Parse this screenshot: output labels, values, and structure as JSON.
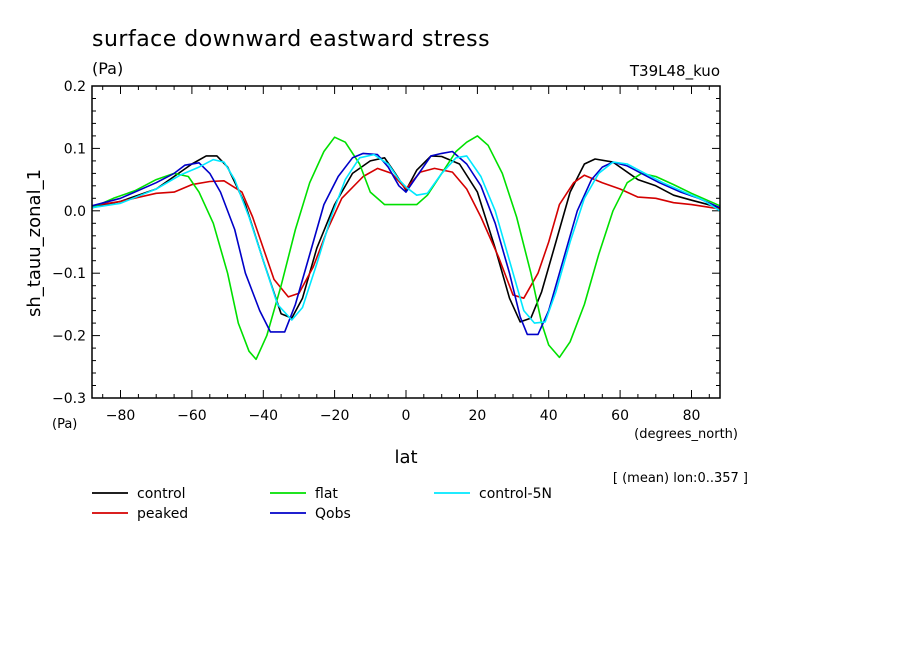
{
  "chart_data": {
    "type": "line",
    "title": "surface downward eastward stress",
    "title_units": "(Pa)",
    "model_label": "T39L48_kuo",
    "ylabel": "sh_tauu_zonal_1",
    "y_units": "(Pa)",
    "xlabel": "lat",
    "x_units": "(degrees_north)",
    "note": "[ (mean) lon:0..357 ]",
    "xlim": [
      -88,
      88
    ],
    "ylim": [
      -0.3,
      0.2
    ],
    "x_ticks": [
      -80,
      -60,
      -40,
      -20,
      0,
      20,
      40,
      60,
      80
    ],
    "x_tick_labels": [
      "−80",
      "−60",
      "−40",
      "−20",
      "0",
      "20",
      "40",
      "60",
      "80"
    ],
    "y_ticks": [
      -0.3,
      -0.2,
      -0.1,
      0.0,
      0.1,
      0.2
    ],
    "y_tick_labels": [
      "−0.3",
      "−0.2",
      "−0.1",
      "0.0",
      "0.1",
      "0.2"
    ],
    "grid": false,
    "legend_position": "bottom",
    "series": [
      {
        "name": "control",
        "color": "#000000",
        "points": [
          [
            -88,
            0.005
          ],
          [
            -80,
            0.015
          ],
          [
            -70,
            0.035
          ],
          [
            -60,
            0.075
          ],
          [
            -56,
            0.088
          ],
          [
            -53,
            0.088
          ],
          [
            -50,
            0.07
          ],
          [
            -45,
            0.01
          ],
          [
            -40,
            -0.08
          ],
          [
            -35,
            -0.165
          ],
          [
            -32,
            -0.172
          ],
          [
            -29,
            -0.14
          ],
          [
            -25,
            -0.06
          ],
          [
            -20,
            0.01
          ],
          [
            -15,
            0.06
          ],
          [
            -10,
            0.08
          ],
          [
            -6,
            0.085
          ],
          [
            -3,
            0.06
          ],
          [
            0,
            0.033
          ],
          [
            3,
            0.065
          ],
          [
            7,
            0.088
          ],
          [
            10,
            0.087
          ],
          [
            15,
            0.075
          ],
          [
            20,
            0.03
          ],
          [
            25,
            -0.06
          ],
          [
            29,
            -0.14
          ],
          [
            32,
            -0.178
          ],
          [
            35,
            -0.172
          ],
          [
            38,
            -0.13
          ],
          [
            42,
            -0.05
          ],
          [
            46,
            0.03
          ],
          [
            50,
            0.075
          ],
          [
            53,
            0.083
          ],
          [
            58,
            0.078
          ],
          [
            65,
            0.05
          ],
          [
            70,
            0.04
          ],
          [
            75,
            0.025
          ],
          [
            80,
            0.017
          ],
          [
            88,
            0.005
          ]
        ]
      },
      {
        "name": "peaked",
        "color": "#d40000",
        "points": [
          [
            -88,
            0.008
          ],
          [
            -80,
            0.015
          ],
          [
            -70,
            0.028
          ],
          [
            -65,
            0.03
          ],
          [
            -60,
            0.042
          ],
          [
            -55,
            0.047
          ],
          [
            -51,
            0.048
          ],
          [
            -46,
            0.03
          ],
          [
            -43,
            -0.01
          ],
          [
            -40,
            -0.06
          ],
          [
            -37,
            -0.11
          ],
          [
            -33,
            -0.138
          ],
          [
            -30,
            -0.132
          ],
          [
            -26,
            -0.09
          ],
          [
            -22,
            -0.03
          ],
          [
            -18,
            0.02
          ],
          [
            -12,
            0.055
          ],
          [
            -8,
            0.068
          ],
          [
            -4,
            0.06
          ],
          [
            0,
            0.035
          ],
          [
            4,
            0.062
          ],
          [
            8,
            0.068
          ],
          [
            13,
            0.062
          ],
          [
            17,
            0.035
          ],
          [
            21,
            -0.01
          ],
          [
            26,
            -0.075
          ],
          [
            30,
            -0.135
          ],
          [
            33,
            -0.14
          ],
          [
            37,
            -0.1
          ],
          [
            40,
            -0.05
          ],
          [
            43,
            0.01
          ],
          [
            47,
            0.045
          ],
          [
            50,
            0.057
          ],
          [
            55,
            0.045
          ],
          [
            60,
            0.035
          ],
          [
            65,
            0.022
          ],
          [
            70,
            0.02
          ],
          [
            75,
            0.013
          ],
          [
            80,
            0.01
          ],
          [
            88,
            0.003
          ]
        ]
      },
      {
        "name": "flat",
        "color": "#00e000",
        "points": [
          [
            -88,
            0.005
          ],
          [
            -82,
            0.02
          ],
          [
            -76,
            0.032
          ],
          [
            -70,
            0.05
          ],
          [
            -65,
            0.06
          ],
          [
            -61,
            0.055
          ],
          [
            -58,
            0.03
          ],
          [
            -54,
            -0.02
          ],
          [
            -50,
            -0.1
          ],
          [
            -47,
            -0.18
          ],
          [
            -44,
            -0.225
          ],
          [
            -42,
            -0.238
          ],
          [
            -39,
            -0.2
          ],
          [
            -35,
            -0.12
          ],
          [
            -31,
            -0.03
          ],
          [
            -27,
            0.045
          ],
          [
            -23,
            0.095
          ],
          [
            -20,
            0.118
          ],
          [
            -17,
            0.11
          ],
          [
            -13,
            0.075
          ],
          [
            -10,
            0.03
          ],
          [
            -6,
            0.01
          ],
          [
            0,
            0.01
          ],
          [
            3,
            0.01
          ],
          [
            6,
            0.025
          ],
          [
            10,
            0.06
          ],
          [
            14,
            0.095
          ],
          [
            17,
            0.11
          ],
          [
            20,
            0.12
          ],
          [
            23,
            0.105
          ],
          [
            27,
            0.06
          ],
          [
            31,
            -0.01
          ],
          [
            35,
            -0.1
          ],
          [
            38,
            -0.18
          ],
          [
            40,
            -0.215
          ],
          [
            43,
            -0.235
          ],
          [
            46,
            -0.21
          ],
          [
            50,
            -0.15
          ],
          [
            54,
            -0.07
          ],
          [
            58,
            0.0
          ],
          [
            62,
            0.045
          ],
          [
            66,
            0.06
          ],
          [
            70,
            0.055
          ],
          [
            75,
            0.042
          ],
          [
            80,
            0.028
          ],
          [
            88,
            0.008
          ]
        ]
      },
      {
        "name": "Qobs",
        "color": "#0000c8",
        "points": [
          [
            -88,
            0.008
          ],
          [
            -80,
            0.02
          ],
          [
            -70,
            0.045
          ],
          [
            -65,
            0.06
          ],
          [
            -62,
            0.073
          ],
          [
            -58,
            0.077
          ],
          [
            -55,
            0.06
          ],
          [
            -52,
            0.03
          ],
          [
            -48,
            -0.03
          ],
          [
            -45,
            -0.1
          ],
          [
            -41,
            -0.16
          ],
          [
            -38,
            -0.194
          ],
          [
            -34,
            -0.194
          ],
          [
            -31,
            -0.15
          ],
          [
            -27,
            -0.07
          ],
          [
            -23,
            0.01
          ],
          [
            -19,
            0.055
          ],
          [
            -15,
            0.085
          ],
          [
            -12,
            0.092
          ],
          [
            -8,
            0.09
          ],
          [
            -5,
            0.07
          ],
          [
            -2,
            0.04
          ],
          [
            0,
            0.03
          ],
          [
            3,
            0.055
          ],
          [
            7,
            0.088
          ],
          [
            10,
            0.092
          ],
          [
            13,
            0.095
          ],
          [
            17,
            0.075
          ],
          [
            21,
            0.04
          ],
          [
            25,
            -0.02
          ],
          [
            29,
            -0.1
          ],
          [
            32,
            -0.17
          ],
          [
            34,
            -0.198
          ],
          [
            37,
            -0.198
          ],
          [
            40,
            -0.16
          ],
          [
            44,
            -0.08
          ],
          [
            48,
            0.0
          ],
          [
            52,
            0.05
          ],
          [
            55,
            0.07
          ],
          [
            58,
            0.078
          ],
          [
            62,
            0.072
          ],
          [
            66,
            0.06
          ],
          [
            71,
            0.045
          ],
          [
            77,
            0.03
          ],
          [
            82,
            0.02
          ],
          [
            88,
            0.005
          ]
        ]
      },
      {
        "name": "control-5N",
        "color": "#00e8ff",
        "points": [
          [
            -88,
            0.005
          ],
          [
            -80,
            0.012
          ],
          [
            -70,
            0.035
          ],
          [
            -63,
            0.058
          ],
          [
            -58,
            0.07
          ],
          [
            -54,
            0.082
          ],
          [
            -51,
            0.078
          ],
          [
            -48,
            0.05
          ],
          [
            -44,
            -0.01
          ],
          [
            -40,
            -0.08
          ],
          [
            -36,
            -0.15
          ],
          [
            -32,
            -0.175
          ],
          [
            -29,
            -0.155
          ],
          [
            -25,
            -0.085
          ],
          [
            -21,
            -0.01
          ],
          [
            -17,
            0.05
          ],
          [
            -13,
            0.085
          ],
          [
            -9,
            0.09
          ],
          [
            -5,
            0.075
          ],
          [
            -2,
            0.05
          ],
          [
            0,
            0.038
          ],
          [
            3,
            0.025
          ],
          [
            6,
            0.028
          ],
          [
            10,
            0.06
          ],
          [
            14,
            0.085
          ],
          [
            17,
            0.088
          ],
          [
            21,
            0.055
          ],
          [
            25,
            0.0
          ],
          [
            29,
            -0.08
          ],
          [
            33,
            -0.16
          ],
          [
            36,
            -0.18
          ],
          [
            39,
            -0.178
          ],
          [
            42,
            -0.13
          ],
          [
            46,
            -0.05
          ],
          [
            50,
            0.02
          ],
          [
            54,
            0.06
          ],
          [
            58,
            0.078
          ],
          [
            62,
            0.075
          ],
          [
            67,
            0.06
          ],
          [
            72,
            0.045
          ],
          [
            78,
            0.03
          ],
          [
            83,
            0.018
          ],
          [
            88,
            0.0
          ]
        ]
      }
    ]
  }
}
